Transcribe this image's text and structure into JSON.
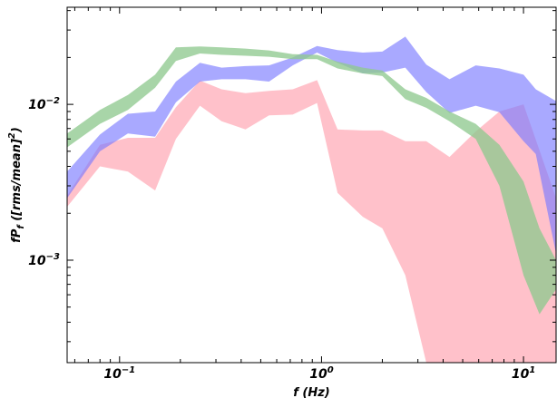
{
  "chart_data": {
    "type": "area",
    "xlabel": "f (Hz)",
    "xscale": "log",
    "yscale": "log",
    "xlim": [
      0.055,
      14.5
    ],
    "ylim": [
      0.00022,
      0.042
    ],
    "x_ticks": [
      {
        "value": 0.1,
        "base": "10",
        "exp": "−1"
      },
      {
        "value": 1,
        "base": "10",
        "exp": "0"
      },
      {
        "value": 10,
        "base": "10",
        "exp": "1"
      }
    ],
    "y_ticks": [
      {
        "value": 0.001,
        "base": "10",
        "exp": "−3"
      },
      {
        "value": 0.01,
        "base": "10",
        "exp": "−2"
      }
    ],
    "ylabel_parts": {
      "main": "fP",
      "sub": "f",
      "rest": " ([rms/mean]",
      "sup": "2",
      "end": ")"
    },
    "series": [
      {
        "color": "#ffb6c1",
        "opacity": 0.85,
        "x": [
          0.055,
          0.08,
          0.11,
          0.15,
          0.19,
          0.25,
          0.32,
          0.42,
          0.55,
          0.72,
          0.95,
          1.2,
          1.6,
          2.0,
          2.6,
          3.3,
          4.3,
          5.8,
          7.6,
          10.0,
          14.5
        ],
        "upper": [
          0.0026,
          0.0055,
          0.0061,
          0.0061,
          0.0096,
          0.0142,
          0.0125,
          0.0118,
          0.0122,
          0.0125,
          0.0143,
          0.0069,
          0.0068,
          0.0068,
          0.0058,
          0.0058,
          0.0046,
          0.0067,
          0.009,
          0.01,
          0.0025
        ],
        "lower": [
          0.0022,
          0.004,
          0.0037,
          0.0028,
          0.006,
          0.0098,
          0.0078,
          0.0069,
          0.0085,
          0.0086,
          0.0102,
          0.0027,
          0.0019,
          0.0016,
          0.0008,
          0.00022,
          0.00022,
          0.00022,
          0.00022,
          0.00022,
          0.00022
        ]
      },
      {
        "color": "#7b7bff",
        "opacity": 0.65,
        "x": [
          0.055,
          0.08,
          0.11,
          0.15,
          0.19,
          0.25,
          0.32,
          0.42,
          0.55,
          0.72,
          0.95,
          1.2,
          1.6,
          2.0,
          2.6,
          3.3,
          4.3,
          5.8,
          7.6,
          10.0,
          11.5,
          14.5
        ],
        "upper": [
          0.0037,
          0.0064,
          0.0087,
          0.009,
          0.014,
          0.0185,
          0.0172,
          0.0176,
          0.0178,
          0.02,
          0.0237,
          0.0223,
          0.0215,
          0.0218,
          0.0272,
          0.018,
          0.0145,
          0.0178,
          0.017,
          0.0155,
          0.0125,
          0.0105
        ],
        "lower": [
          0.0025,
          0.005,
          0.0065,
          0.0062,
          0.0103,
          0.014,
          0.0145,
          0.0145,
          0.014,
          0.0178,
          0.0215,
          0.0185,
          0.0158,
          0.016,
          0.0172,
          0.012,
          0.0088,
          0.0098,
          0.0089,
          0.0058,
          0.0048,
          0.0011
        ]
      },
      {
        "color": "#8fc98f",
        "opacity": 0.78,
        "x": [
          0.055,
          0.08,
          0.11,
          0.15,
          0.19,
          0.25,
          0.32,
          0.42,
          0.55,
          0.72,
          0.95,
          1.2,
          1.6,
          2.0,
          2.6,
          3.3,
          4.3,
          5.8,
          7.6,
          10.0,
          12.0,
          14.5
        ],
        "upper": [
          0.0065,
          0.0092,
          0.0115,
          0.0155,
          0.0232,
          0.0235,
          0.0232,
          0.0228,
          0.0222,
          0.021,
          0.0208,
          0.0188,
          0.0172,
          0.0165,
          0.0125,
          0.011,
          0.009,
          0.0075,
          0.0055,
          0.0032,
          0.0016,
          0.001
        ],
        "lower": [
          0.0053,
          0.0075,
          0.0092,
          0.0128,
          0.019,
          0.0212,
          0.0208,
          0.0205,
          0.0202,
          0.0195,
          0.0195,
          0.017,
          0.0158,
          0.0152,
          0.0108,
          0.0095,
          0.0078,
          0.006,
          0.003,
          0.0008,
          0.00045,
          0.00065
        ]
      }
    ]
  }
}
